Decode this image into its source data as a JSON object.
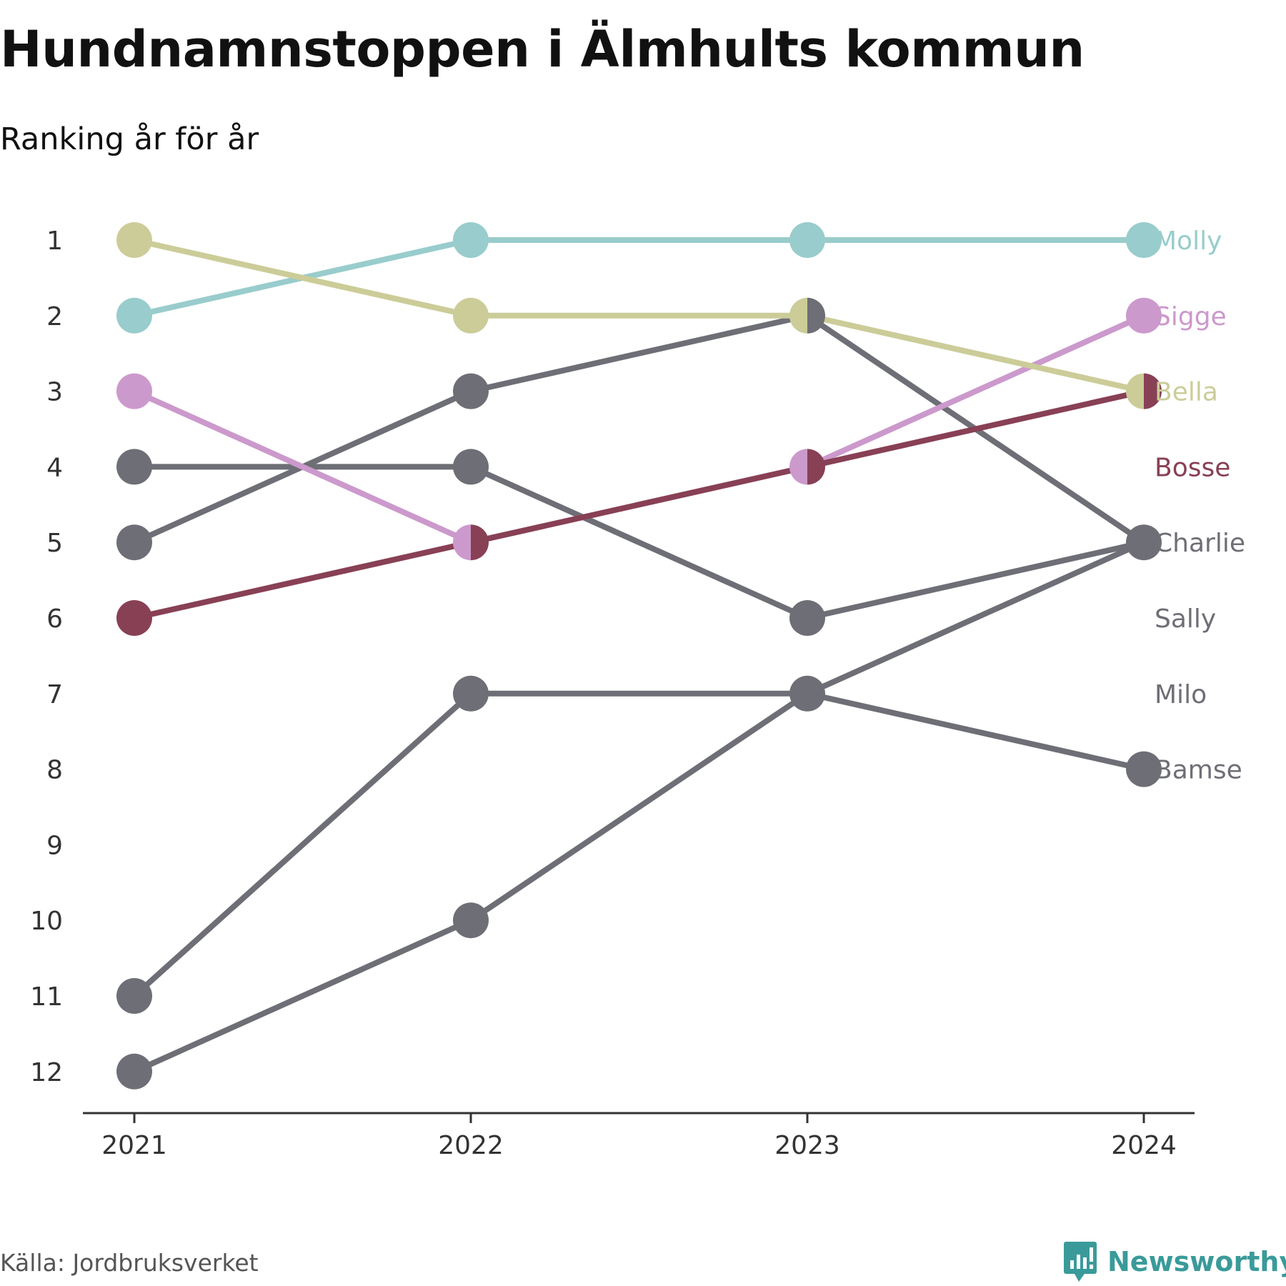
{
  "title": "Hundnamnstoppen i Älmhults kommun",
  "subtitle": "Ranking år för år",
  "source": "Källa: Jordbruksverket",
  "brand": {
    "name": "Newsworthy",
    "icon": "newsworthy-logo-icon",
    "color": "#3a9a9a"
  },
  "chart_data": {
    "type": "line",
    "x": [
      "2021",
      "2022",
      "2023",
      "2024"
    ],
    "y_ticks": [
      "1",
      "2",
      "3",
      "4",
      "5",
      "6",
      "7",
      "8",
      "9",
      "10",
      "11",
      "12"
    ],
    "ylim": [
      1,
      12
    ],
    "y_reversed": true,
    "grid": false,
    "series": [
      {
        "name": "Molly",
        "values": [
          2,
          1,
          1,
          1
        ],
        "color": "#99cccc"
      },
      {
        "name": "Sigge",
        "values": [
          3,
          5,
          4,
          2
        ],
        "color": "#cc99cc"
      },
      {
        "name": "Bella",
        "values": [
          1,
          2,
          2,
          3
        ],
        "color": "#cccc99"
      },
      {
        "name": "Bosse",
        "values": [
          6,
          5,
          4,
          3
        ],
        "color": "#884055"
      },
      {
        "name": "Charlie",
        "values": [
          5,
          3,
          2,
          5
        ],
        "color": "#6e6e76"
      },
      {
        "name": "Sally",
        "values": [
          12,
          10,
          7,
          5
        ],
        "color": "#6e6e76"
      },
      {
        "name": "Milo",
        "values": [
          4,
          4,
          6,
          5
        ],
        "color": "#6e6e76"
      },
      {
        "name": "Bamse",
        "values": [
          11,
          7,
          7,
          8
        ],
        "color": "#6e6e76"
      }
    ],
    "label_order": [
      "Molly",
      "Sigge",
      "Bella",
      "Bosse",
      "Charlie",
      "Sally",
      "Milo",
      "Bamse"
    ]
  }
}
